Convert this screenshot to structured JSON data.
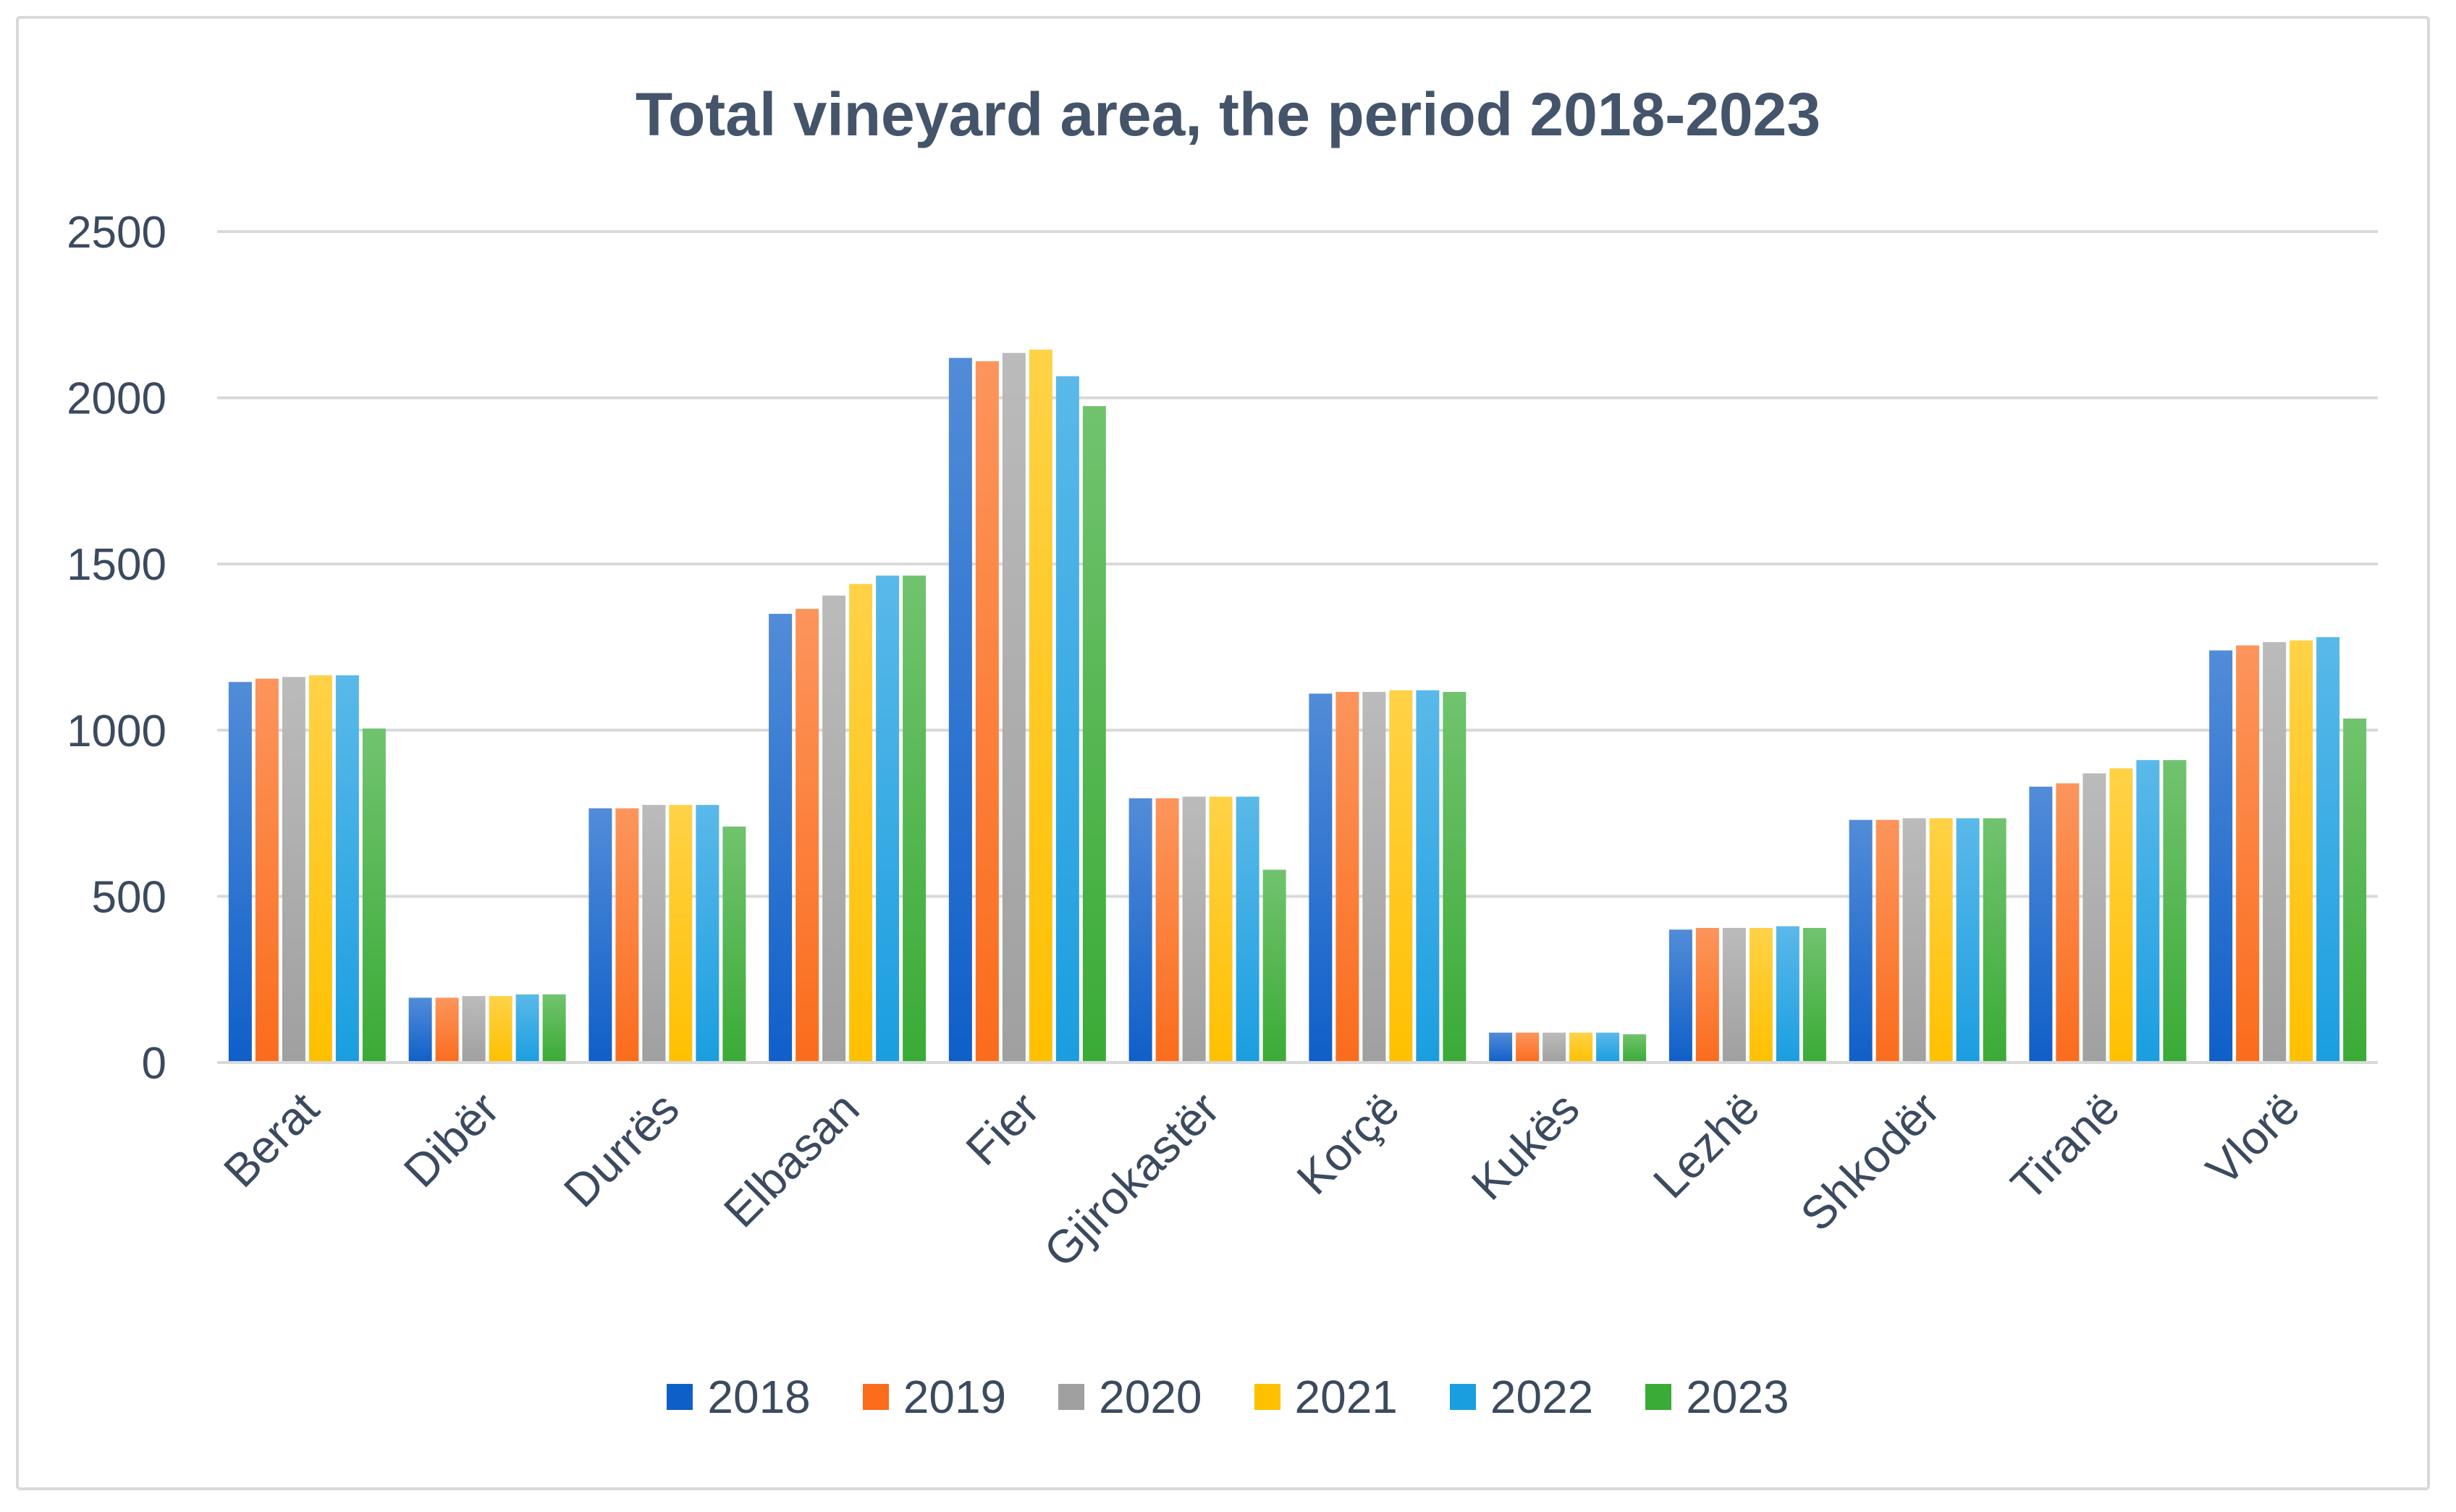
{
  "chart_data": {
    "type": "bar",
    "title": "Total vineyard area, the period 2018-2023",
    "xlabel": "",
    "ylabel": "",
    "ylim": [
      0,
      2500
    ],
    "yticks": [
      0,
      500,
      1000,
      1500,
      2000,
      2500
    ],
    "grid": true,
    "legend_position": "bottom",
    "categories": [
      "Berat",
      "Dibër",
      "Durrës",
      "Elbasan",
      "Fier",
      "Gjirokastër",
      "Korçë",
      "Kukës",
      "Lezhë",
      "Shkodër",
      "Tiranë",
      "Vlorë"
    ],
    "series": [
      {
        "name": "2018",
        "color": "#0f5fc9",
        "values": [
          1145,
          195,
          765,
          1350,
          2120,
          795,
          1110,
          90,
          400,
          730,
          830,
          1240
        ]
      },
      {
        "name": "2019",
        "color": "#fb6c1c",
        "values": [
          1155,
          195,
          765,
          1365,
          2110,
          795,
          1115,
          90,
          405,
          730,
          840,
          1255
        ]
      },
      {
        "name": "2020",
        "color": "#a0a0a0",
        "values": [
          1160,
          200,
          775,
          1405,
          2135,
          800,
          1115,
          90,
          405,
          735,
          870,
          1265
        ]
      },
      {
        "name": "2021",
        "color": "#ffc000",
        "values": [
          1165,
          200,
          775,
          1440,
          2145,
          800,
          1120,
          90,
          405,
          735,
          885,
          1270
        ]
      },
      {
        "name": "2022",
        "color": "#1a9ee0",
        "values": [
          1165,
          205,
          775,
          1465,
          2065,
          800,
          1120,
          90,
          410,
          735,
          910,
          1280
        ]
      },
      {
        "name": "2023",
        "color": "#3aab36",
        "values": [
          1005,
          205,
          710,
          1465,
          1975,
          580,
          1115,
          85,
          405,
          735,
          910,
          1035
        ]
      }
    ]
  }
}
